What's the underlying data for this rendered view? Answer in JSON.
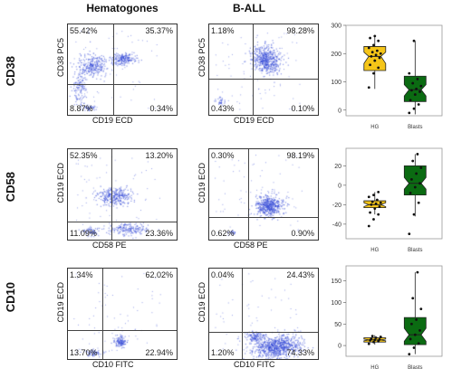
{
  "headers": {
    "hematogones": "Hematogones",
    "ball": "B-ALL"
  },
  "rows": [
    {
      "label": "CD38",
      "ylabel": "CD38 PC5",
      "xlabel": "CD19 ECD",
      "hg": {
        "tl": "55.42%",
        "tr": "35.37%",
        "bl": "8.87%",
        "br": "0.34%"
      },
      "ball": {
        "tl": "1.18%",
        "tr": "98.28%",
        "bl": "0.43%",
        "br": "0.10%"
      },
      "box": {
        "categories": [
          "HG",
          "Blasts"
        ],
        "ticks": [
          "300",
          "200",
          "100",
          "0"
        ],
        "ylim": [
          -20,
          300
        ]
      }
    },
    {
      "label": "CD58",
      "ylabel": "CD19 ECD",
      "xlabel": "CD58 PE",
      "hg": {
        "tl": "52.35%",
        "tr": "13.20%",
        "bl": "11.09%",
        "br": "23.36%"
      },
      "ball": {
        "tl": "0.30%",
        "tr": "98.19%",
        "bl": "0.62%",
        "br": "0.90%"
      },
      "box": {
        "categories": [
          "HG",
          "Blasts"
        ],
        "ticks": [
          "20",
          "0",
          "-20",
          "-40"
        ],
        "ylim": [
          -55,
          38
        ]
      }
    },
    {
      "label": "CD10",
      "ylabel": "CD19 ECD",
      "xlabel": "CD10 FITC",
      "hg": {
        "tl": "1.34%",
        "tr": "62.02%",
        "bl": "13.70%",
        "br": "22.94%"
      },
      "ball": {
        "tl": "0.04%",
        "tr": "24.43%",
        "bl": "1.20%",
        "br": "74.33%"
      },
      "box": {
        "categories": [
          "HG",
          "Blasts"
        ],
        "ticks": [
          "150",
          "100",
          "50",
          "0"
        ],
        "ylim": [
          -25,
          185
        ]
      }
    }
  ],
  "chart_data": [
    {
      "type": "box",
      "marker": "CD38",
      "categories": [
        "HG",
        "Blasts"
      ],
      "series": [
        {
          "name": "HG",
          "q1": 140,
          "median": 190,
          "q3": 225,
          "min": 75,
          "max": 262,
          "notch": [
            165,
            205
          ],
          "points": [
            80,
            130,
            150,
            160,
            175,
            185,
            190,
            195,
            200,
            205,
            210,
            220,
            230,
            245,
            255,
            262
          ]
        },
        {
          "name": "Blasts",
          "q1": 30,
          "median": 72,
          "q3": 120,
          "min": -15,
          "max": 245,
          "notch": [
            50,
            90
          ],
          "points": [
            -10,
            5,
            20,
            35,
            55,
            65,
            70,
            75,
            85,
            95,
            110,
            130,
            245
          ]
        }
      ],
      "ylim": [
        -20,
        300
      ]
    },
    {
      "type": "box",
      "marker": "CD58",
      "categories": [
        "HG",
        "Blasts"
      ],
      "series": [
        {
          "name": "HG",
          "q1": -23,
          "median": -20,
          "q3": -16,
          "min": -30,
          "max": -7,
          "notch": [
            -22,
            -18
          ],
          "points": [
            -42,
            -35,
            -30,
            -28,
            -24,
            -22,
            -20,
            -19,
            -18,
            -17,
            -15,
            -12,
            -10,
            -7
          ]
        },
        {
          "name": "Blasts",
          "q1": -10,
          "median": 2,
          "q3": 20,
          "min": -32,
          "max": 32,
          "notch": [
            -4,
            8
          ],
          "points": [
            -50,
            -30,
            -18,
            -8,
            -2,
            2,
            6,
            12,
            18,
            25,
            32
          ]
        }
      ],
      "ylim": [
        -55,
        38
      ]
    },
    {
      "type": "box",
      "marker": "CD10",
      "categories": [
        "HG",
        "Blasts"
      ],
      "series": [
        {
          "name": "HG",
          "q1": 8,
          "median": 13,
          "q3": 18,
          "min": 2,
          "max": 24,
          "notch": [
            11,
            15
          ],
          "points": [
            4,
            8,
            10,
            12,
            13,
            14,
            16,
            18,
            20,
            22
          ]
        },
        {
          "name": "Blasts",
          "q1": 2,
          "median": 25,
          "q3": 65,
          "min": -20,
          "max": 170,
          "notch": [
            10,
            40
          ],
          "points": [
            -20,
            -5,
            5,
            15,
            25,
            35,
            50,
            60,
            85,
            110,
            170
          ]
        }
      ],
      "ylim": [
        -25,
        185
      ]
    }
  ],
  "colors": {
    "hg_fill": "#f5c518",
    "blast_fill": "#0b6b12",
    "flow_dot": "#2f46d6"
  }
}
